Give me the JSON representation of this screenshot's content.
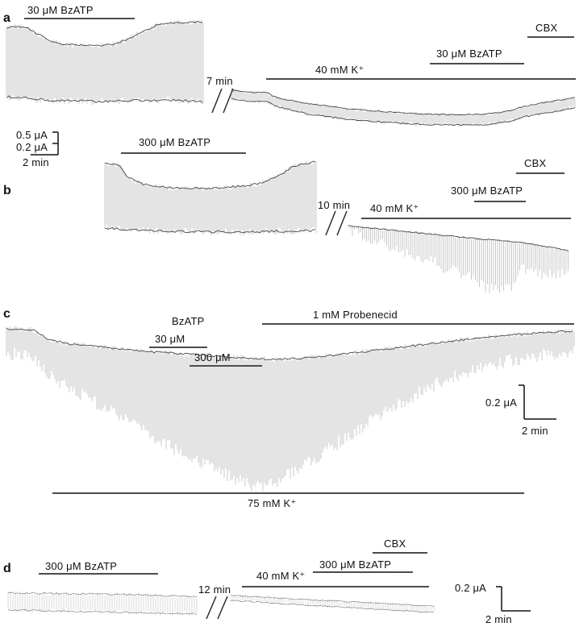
{
  "panels": {
    "a": {
      "label": "a",
      "bzatp_left": "30 μM BzATP",
      "gap": "7 min",
      "cbx": "CBX",
      "bzatp_right": "30 μM BzATP",
      "k": "40 mM K⁺"
    },
    "b": {
      "label": "b",
      "bzatp_left": "300 μM BzATP",
      "gap": "10 min",
      "cbx": "CBX",
      "bzatp_right": "300 μM BzATP",
      "k": "40 mM K⁺"
    },
    "c": {
      "label": "c",
      "probenecid": "1 mM Probenecid",
      "bzatp": "BzATP",
      "dose_30": "30 μM",
      "dose_300": "300 μM",
      "k": "75 mM K⁺"
    },
    "d": {
      "label": "d",
      "bzatp_left": "300 μM BzATP",
      "gap": "12 min",
      "cbx": "CBX",
      "bzatp_right": "300 μM BzATP",
      "k": "40 mM K⁺"
    }
  },
  "scales": {
    "a": {
      "current_1": "0.5 μA",
      "current_2": "0.2 μA",
      "time": "2 min"
    },
    "c": {
      "current": "0.2 μA",
      "time": "2 min"
    },
    "d": {
      "current": "0.2 μA",
      "time": "2 min"
    }
  }
}
